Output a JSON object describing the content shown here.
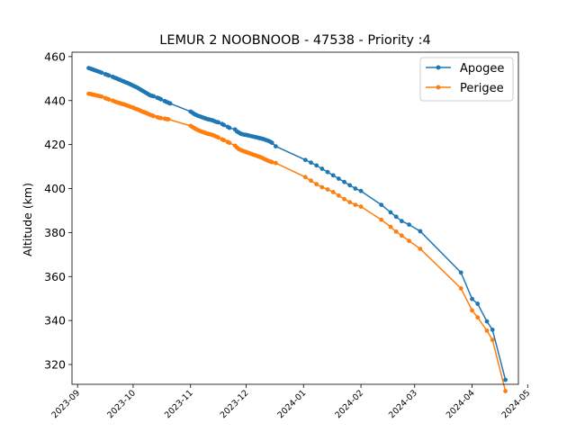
{
  "chart_data": {
    "type": "line",
    "title": "LEMUR 2 NOOBNOOB - 47538 - Priority :4",
    "xlabel": "",
    "ylabel": "Altitude (km)",
    "xlim": [
      "2023-08-29",
      "2024-04-26"
    ],
    "ylim": [
      311,
      462
    ],
    "yticks": [
      320,
      340,
      360,
      380,
      400,
      420,
      440,
      460
    ],
    "xticks": [
      "2023-09",
      "2023-10",
      "2023-11",
      "2023-12",
      "2024-01",
      "2024-02",
      "2024-03",
      "2024-04",
      "2024-05"
    ],
    "grid": false,
    "legend_position": "top-right",
    "series": [
      {
        "name": "Apogee",
        "color": "#1f77b4",
        "points": [
          [
            "2023-09-07",
            454.8
          ],
          [
            "2023-09-08",
            454.5
          ],
          [
            "2023-09-09",
            454.2
          ],
          [
            "2023-09-10",
            453.9
          ],
          [
            "2023-09-11",
            453.6
          ],
          [
            "2023-09-12",
            453.3
          ],
          [
            "2023-09-13",
            453.0
          ],
          [
            "2023-09-14",
            452.7
          ],
          [
            "2023-09-16",
            452.0
          ],
          [
            "2023-09-17",
            451.7
          ],
          [
            "2023-09-18",
            451.4
          ],
          [
            "2023-09-20",
            450.8
          ],
          [
            "2023-09-21",
            450.4
          ],
          [
            "2023-09-22",
            450.1
          ],
          [
            "2023-09-23",
            449.7
          ],
          [
            "2023-09-24",
            449.4
          ],
          [
            "2023-09-25",
            449.0
          ],
          [
            "2023-09-26",
            448.7
          ],
          [
            "2023-09-27",
            448.3
          ],
          [
            "2023-09-28",
            448.0
          ],
          [
            "2023-09-29",
            447.6
          ],
          [
            "2023-09-30",
            447.2
          ],
          [
            "2023-10-01",
            446.8
          ],
          [
            "2023-10-02",
            446.4
          ],
          [
            "2023-10-03",
            446.0
          ],
          [
            "2023-10-04",
            445.5
          ],
          [
            "2023-10-05",
            445.0
          ],
          [
            "2023-10-06",
            444.5
          ],
          [
            "2023-10-07",
            444.0
          ],
          [
            "2023-10-08",
            443.5
          ],
          [
            "2023-10-09",
            443.0
          ],
          [
            "2023-10-10",
            442.5
          ],
          [
            "2023-10-11",
            442.2
          ],
          [
            "2023-10-12",
            442.0
          ],
          [
            "2023-10-14",
            441.3
          ],
          [
            "2023-10-15",
            441.0
          ],
          [
            "2023-10-16",
            440.6
          ],
          [
            "2023-10-18",
            439.8
          ],
          [
            "2023-10-19",
            439.4
          ],
          [
            "2023-10-20",
            439.0
          ],
          [
            "2023-10-21",
            438.7
          ],
          [
            "2023-11-01",
            435.0
          ],
          [
            "2023-11-02",
            434.5
          ],
          [
            "2023-11-03",
            433.9
          ],
          [
            "2023-11-04",
            433.5
          ],
          [
            "2023-11-05",
            433.1
          ],
          [
            "2023-11-06",
            432.8
          ],
          [
            "2023-11-07",
            432.5
          ],
          [
            "2023-11-08",
            432.2
          ],
          [
            "2023-11-09",
            431.9
          ],
          [
            "2023-11-10",
            431.6
          ],
          [
            "2023-11-11",
            431.4
          ],
          [
            "2023-11-12",
            431.2
          ],
          [
            "2023-11-13",
            431.0
          ],
          [
            "2023-11-14",
            430.6
          ],
          [
            "2023-11-15",
            430.3
          ],
          [
            "2023-11-16",
            430.1
          ],
          [
            "2023-11-18",
            429.4
          ],
          [
            "2023-11-19",
            428.9
          ],
          [
            "2023-11-21",
            428.1
          ],
          [
            "2023-11-22",
            427.6
          ],
          [
            "2023-11-25",
            426.9
          ],
          [
            "2023-11-26",
            426.0
          ],
          [
            "2023-11-27",
            425.5
          ],
          [
            "2023-11-28",
            425.0
          ],
          [
            "2023-11-29",
            424.7
          ],
          [
            "2023-11-30",
            424.5
          ],
          [
            "2023-12-01",
            424.4
          ],
          [
            "2023-12-02",
            424.2
          ],
          [
            "2023-12-03",
            424.0
          ],
          [
            "2023-12-04",
            423.8
          ],
          [
            "2023-12-05",
            423.6
          ],
          [
            "2023-12-06",
            423.4
          ],
          [
            "2023-12-07",
            423.2
          ],
          [
            "2023-12-08",
            423.0
          ],
          [
            "2023-12-09",
            422.8
          ],
          [
            "2023-12-10",
            422.6
          ],
          [
            "2023-12-11",
            422.3
          ],
          [
            "2023-12-12",
            422.0
          ],
          [
            "2023-12-13",
            421.7
          ],
          [
            "2023-12-14",
            421.3
          ],
          [
            "2023-12-15",
            420.8
          ],
          [
            "2023-12-17",
            419.2
          ],
          [
            "2024-01-02",
            413.0
          ],
          [
            "2024-01-05",
            411.8
          ],
          [
            "2024-01-08",
            410.5
          ],
          [
            "2024-01-11",
            409.0
          ],
          [
            "2024-01-14",
            407.5
          ],
          [
            "2024-01-17",
            406.0
          ],
          [
            "2024-01-20",
            404.5
          ],
          [
            "2024-01-23",
            403.0
          ],
          [
            "2024-01-26",
            401.5
          ],
          [
            "2024-01-29",
            400.0
          ],
          [
            "2024-02-01",
            398.9
          ],
          [
            "2024-02-12",
            392.6
          ],
          [
            "2024-02-17",
            389.2
          ],
          [
            "2024-02-20",
            387.2
          ],
          [
            "2024-02-23",
            385.2
          ],
          [
            "2024-02-27",
            383.6
          ],
          [
            "2024-03-04",
            380.6
          ],
          [
            "2024-03-26",
            361.8
          ],
          [
            "2024-04-01",
            349.8
          ],
          [
            "2024-04-04",
            347.6
          ],
          [
            "2024-04-09",
            339.6
          ],
          [
            "2024-04-12",
            335.8
          ],
          [
            "2024-04-19",
            313.0
          ]
        ]
      },
      {
        "name": "Perigee",
        "color": "#ff7f0e",
        "points": [
          [
            "2023-09-07",
            443.1
          ],
          [
            "2023-09-08",
            443.0
          ],
          [
            "2023-09-09",
            442.8
          ],
          [
            "2023-09-10",
            442.6
          ],
          [
            "2023-09-11",
            442.4
          ],
          [
            "2023-09-12",
            442.2
          ],
          [
            "2023-09-13",
            442.0
          ],
          [
            "2023-09-14",
            441.8
          ],
          [
            "2023-09-16",
            441.1
          ],
          [
            "2023-09-17",
            440.8
          ],
          [
            "2023-09-18",
            440.5
          ],
          [
            "2023-09-20",
            440.0
          ],
          [
            "2023-09-21",
            439.6
          ],
          [
            "2023-09-22",
            439.3
          ],
          [
            "2023-09-23",
            439.0
          ],
          [
            "2023-09-24",
            438.8
          ],
          [
            "2023-09-25",
            438.5
          ],
          [
            "2023-09-26",
            438.3
          ],
          [
            "2023-09-27",
            438.0
          ],
          [
            "2023-09-28",
            437.7
          ],
          [
            "2023-09-29",
            437.4
          ],
          [
            "2023-09-30",
            437.0
          ],
          [
            "2023-10-01",
            436.8
          ],
          [
            "2023-10-02",
            436.4
          ],
          [
            "2023-10-03",
            436.1
          ],
          [
            "2023-10-04",
            435.8
          ],
          [
            "2023-10-05",
            435.4
          ],
          [
            "2023-10-06",
            435.0
          ],
          [
            "2023-10-07",
            434.7
          ],
          [
            "2023-10-08",
            434.4
          ],
          [
            "2023-10-09",
            434.0
          ],
          [
            "2023-10-10",
            433.6
          ],
          [
            "2023-10-11",
            433.3
          ],
          [
            "2023-10-12",
            433.0
          ],
          [
            "2023-10-14",
            432.5
          ],
          [
            "2023-10-15",
            432.2
          ],
          [
            "2023-10-16",
            432.0
          ],
          [
            "2023-10-18",
            431.8
          ],
          [
            "2023-10-19",
            431.6
          ],
          [
            "2023-10-20",
            431.5
          ],
          [
            "2023-11-01",
            428.5
          ],
          [
            "2023-11-02",
            428.0
          ],
          [
            "2023-11-03",
            427.5
          ],
          [
            "2023-11-04",
            427.0
          ],
          [
            "2023-11-05",
            426.6
          ],
          [
            "2023-11-06",
            426.2
          ],
          [
            "2023-11-07",
            425.9
          ],
          [
            "2023-11-08",
            425.6
          ],
          [
            "2023-11-09",
            425.3
          ],
          [
            "2023-11-10",
            425.0
          ],
          [
            "2023-11-11",
            424.8
          ],
          [
            "2023-11-12",
            424.6
          ],
          [
            "2023-11-13",
            424.3
          ],
          [
            "2023-11-14",
            424.0
          ],
          [
            "2023-11-15",
            423.6
          ],
          [
            "2023-11-16",
            423.2
          ],
          [
            "2023-11-18",
            422.4
          ],
          [
            "2023-11-19",
            422.0
          ],
          [
            "2023-11-21",
            421.2
          ],
          [
            "2023-11-22",
            420.8
          ],
          [
            "2023-11-25",
            419.5
          ],
          [
            "2023-11-26",
            418.7
          ],
          [
            "2023-11-27",
            418.0
          ],
          [
            "2023-11-28",
            417.6
          ],
          [
            "2023-11-29",
            417.2
          ],
          [
            "2023-11-30",
            416.9
          ],
          [
            "2023-12-01",
            416.6
          ],
          [
            "2023-12-02",
            416.3
          ],
          [
            "2023-12-03",
            416.0
          ],
          [
            "2023-12-04",
            415.7
          ],
          [
            "2023-12-05",
            415.4
          ],
          [
            "2023-12-06",
            415.1
          ],
          [
            "2023-12-07",
            414.8
          ],
          [
            "2023-12-08",
            414.5
          ],
          [
            "2023-12-09",
            414.2
          ],
          [
            "2023-12-10",
            413.8
          ],
          [
            "2023-12-11",
            413.4
          ],
          [
            "2023-12-12",
            413.0
          ],
          [
            "2023-12-13",
            412.6
          ],
          [
            "2023-12-14",
            412.3
          ],
          [
            "2023-12-15",
            412.0
          ],
          [
            "2023-12-17",
            411.6
          ],
          [
            "2024-01-02",
            405.2
          ],
          [
            "2024-01-05",
            403.6
          ],
          [
            "2024-01-08",
            402.0
          ],
          [
            "2024-01-11",
            400.6
          ],
          [
            "2024-01-14",
            399.6
          ],
          [
            "2024-01-17",
            398.4
          ],
          [
            "2024-01-20",
            396.8
          ],
          [
            "2024-01-23",
            395.2
          ],
          [
            "2024-01-26",
            393.8
          ],
          [
            "2024-01-29",
            392.6
          ],
          [
            "2024-02-01",
            391.8
          ],
          [
            "2024-02-12",
            385.8
          ],
          [
            "2024-02-17",
            382.6
          ],
          [
            "2024-02-20",
            380.4
          ],
          [
            "2024-02-23",
            378.6
          ],
          [
            "2024-02-27",
            376.2
          ],
          [
            "2024-03-04",
            372.6
          ],
          [
            "2024-03-26",
            354.6
          ],
          [
            "2024-04-01",
            344.6
          ],
          [
            "2024-04-04",
            341.4
          ],
          [
            "2024-04-09",
            335.4
          ],
          [
            "2024-04-12",
            331.2
          ],
          [
            "2024-04-19",
            307.9
          ]
        ]
      }
    ]
  }
}
